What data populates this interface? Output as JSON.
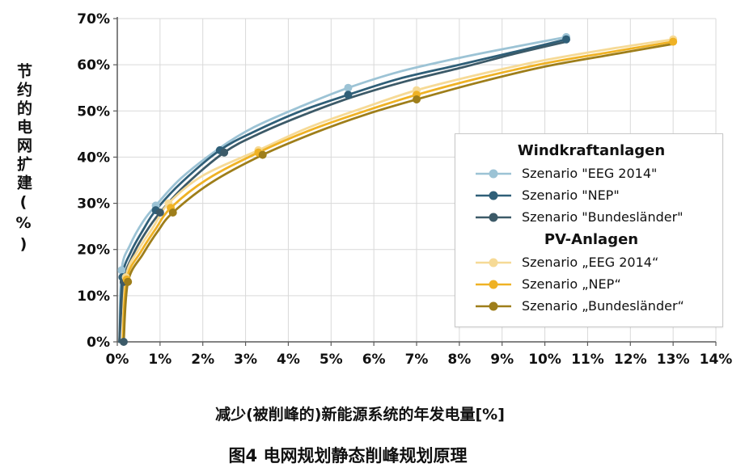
{
  "caption": "图4  电网规划静态削峰规划原理",
  "chart_data": {
    "type": "line",
    "title": "",
    "xlabel": "减少(被削峰的)新能源系统的年发电量[%]",
    "ylabel": "节约的电网扩建(%)",
    "xlim": [
      0,
      14
    ],
    "ylim": [
      0,
      70
    ],
    "grid": true,
    "legend_position": "right-inside",
    "x_ticks": [
      "0%",
      "1%",
      "2%",
      "3%",
      "4%",
      "5%",
      "6%",
      "7%",
      "8%",
      "9%",
      "10%",
      "11%",
      "12%",
      "13%",
      "14%"
    ],
    "y_ticks": [
      "0%",
      "10%",
      "20%",
      "30%",
      "40%",
      "50%",
      "60%",
      "70%"
    ],
    "groups": [
      {
        "name": "Windkraftanlagen",
        "series": [
          {
            "name": "Szenario \"EEG 2014\"",
            "color": "#9cc3d5",
            "points": [
              [
                0.05,
                0
              ],
              [
                0.1,
                15.5
              ],
              [
                0.3,
                21
              ],
              [
                0.6,
                26
              ],
              [
                0.9,
                29.5
              ],
              [
                1.5,
                35.5
              ],
              [
                2.4,
                42
              ],
              [
                3.2,
                46.5
              ],
              [
                4.3,
                51
              ],
              [
                5.4,
                55
              ],
              [
                6.6,
                58.5
              ],
              [
                8,
                61.5
              ],
              [
                9.3,
                63.9
              ],
              [
                10.5,
                66
              ]
            ],
            "markers": [
              [
                0.1,
                15.5
              ],
              [
                0.9,
                29.5
              ],
              [
                5.4,
                55
              ],
              [
                10.5,
                66
              ]
            ]
          },
          {
            "name": "Szenario \"NEP\"",
            "color": "#2f5f78",
            "points": [
              [
                0.05,
                0
              ],
              [
                0.12,
                14
              ],
              [
                0.32,
                19.5
              ],
              [
                0.62,
                24.5
              ],
              [
                0.9,
                28.5
              ],
              [
                1.5,
                34.5
              ],
              [
                2.4,
                41.5
              ],
              [
                3.2,
                45.5
              ],
              [
                4.3,
                50
              ],
              [
                5.4,
                53.5
              ],
              [
                6.6,
                57
              ],
              [
                8,
                60
              ],
              [
                9.3,
                62.8
              ],
              [
                10.5,
                65.5
              ]
            ],
            "markers": [
              [
                0.12,
                14
              ],
              [
                0.9,
                28.5
              ],
              [
                2.4,
                41.5
              ],
              [
                5.4,
                53.5
              ],
              [
                10.5,
                65.5
              ]
            ]
          },
          {
            "name": "Szenario \"Bundesländer\"",
            "color": "#3c5a68",
            "points": [
              [
                0.05,
                0
              ],
              [
                0.15,
                13
              ],
              [
                0.35,
                18.5
              ],
              [
                0.65,
                23.5
              ],
              [
                1,
                28
              ],
              [
                1.6,
                34
              ],
              [
                2.5,
                41
              ],
              [
                3.3,
                45
              ],
              [
                4.4,
                49.3
              ],
              [
                5.5,
                53
              ],
              [
                6.7,
                56.3
              ],
              [
                8.1,
                59.5
              ],
              [
                9.3,
                62.4
              ],
              [
                10.5,
                65
              ]
            ],
            "markers": [
              [
                0.15,
                0
              ],
              [
                0.15,
                13
              ],
              [
                1,
                28
              ],
              [
                2.5,
                41
              ]
            ]
          }
        ]
      },
      {
        "name": "PV-Anlagen",
        "series": [
          {
            "name": "Szenario „EEG 2014“",
            "color": "#f6da96",
            "points": [
              [
                0.12,
                0
              ],
              [
                0.2,
                14
              ],
              [
                0.5,
                20
              ],
              [
                0.85,
                25
              ],
              [
                1.2,
                30
              ],
              [
                2,
                36
              ],
              [
                3.3,
                41.5
              ],
              [
                4.5,
                46.5
              ],
              [
                5.8,
                50.8
              ],
              [
                7,
                54.5
              ],
              [
                8.5,
                58
              ],
              [
                10,
                61
              ],
              [
                11.5,
                63.4
              ],
              [
                13,
                65.5
              ]
            ],
            "markers": [
              [
                0.2,
                14
              ],
              [
                1.2,
                30
              ],
              [
                3.3,
                41.5
              ],
              [
                7,
                54.5
              ],
              [
                13,
                65.5
              ]
            ]
          },
          {
            "name": "Szenario „NEP“",
            "color": "#efb225",
            "points": [
              [
                0.13,
                0
              ],
              [
                0.22,
                13.5
              ],
              [
                0.55,
                19.5
              ],
              [
                0.9,
                24.5
              ],
              [
                1.25,
                29
              ],
              [
                2.1,
                35.2
              ],
              [
                3.3,
                41
              ],
              [
                4.5,
                45.8
              ],
              [
                5.8,
                50
              ],
              [
                7,
                53.5
              ],
              [
                8.5,
                57.2
              ],
              [
                10,
                60.3
              ],
              [
                11.5,
                62.7
              ],
              [
                13,
                65
              ]
            ],
            "markers": [
              [
                0.22,
                13.5
              ],
              [
                1.25,
                29
              ],
              [
                3.3,
                41
              ],
              [
                7,
                53.5
              ],
              [
                13,
                65
              ]
            ]
          },
          {
            "name": "Szenario „Bundesländer“",
            "color": "#9e7e1a",
            "points": [
              [
                0.15,
                0
              ],
              [
                0.25,
                13
              ],
              [
                0.6,
                19
              ],
              [
                0.95,
                24
              ],
              [
                1.3,
                28
              ],
              [
                2.2,
                34.5
              ],
              [
                3.4,
                40.5
              ],
              [
                4.6,
                45.2
              ],
              [
                5.8,
                49.2
              ],
              [
                7,
                52.5
              ],
              [
                8.5,
                56.3
              ],
              [
                10,
                59.6
              ],
              [
                11.5,
                62.1
              ],
              [
                13,
                64.5
              ]
            ],
            "markers": [
              [
                0.25,
                13
              ],
              [
                1.3,
                28
              ],
              [
                3.4,
                40.5
              ],
              [
                7,
                52.5
              ]
            ]
          }
        ]
      }
    ]
  }
}
